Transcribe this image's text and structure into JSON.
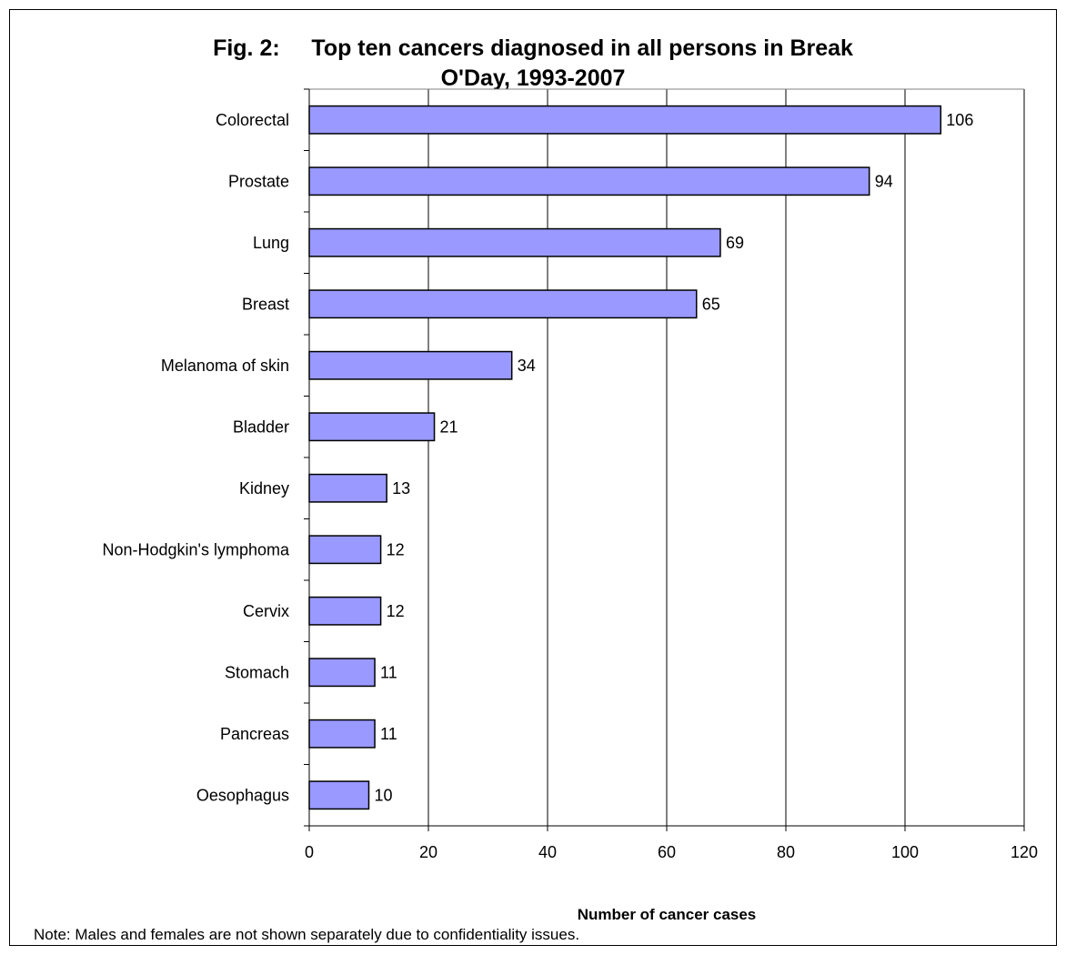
{
  "chart_data": {
    "type": "bar",
    "orientation": "horizontal",
    "title_line_1": "Fig. 2:     Top ten cancers diagnosed in all persons in Break",
    "title_line_2": "O'Day, 1993-2007",
    "xlabel": "Number of cancer cases",
    "ylabel": "",
    "xlim": [
      0,
      120
    ],
    "xticks": [
      0,
      20,
      40,
      60,
      80,
      100,
      120
    ],
    "grid": "vertical",
    "legend": "none",
    "categories": [
      "Colorectal",
      "Prostate",
      "Lung",
      "Breast",
      "Melanoma of skin",
      "Bladder",
      "Kidney",
      "Non-Hodgkin's lymphoma",
      "Cervix",
      "Stomach",
      "Pancreas",
      "Oesophagus"
    ],
    "values": [
      106,
      94,
      69,
      65,
      34,
      21,
      13,
      12,
      12,
      11,
      11,
      10
    ],
    "bar_color": "#9999ff",
    "note": "Note: Males and females are not shown separately due to confidentiality issues."
  }
}
